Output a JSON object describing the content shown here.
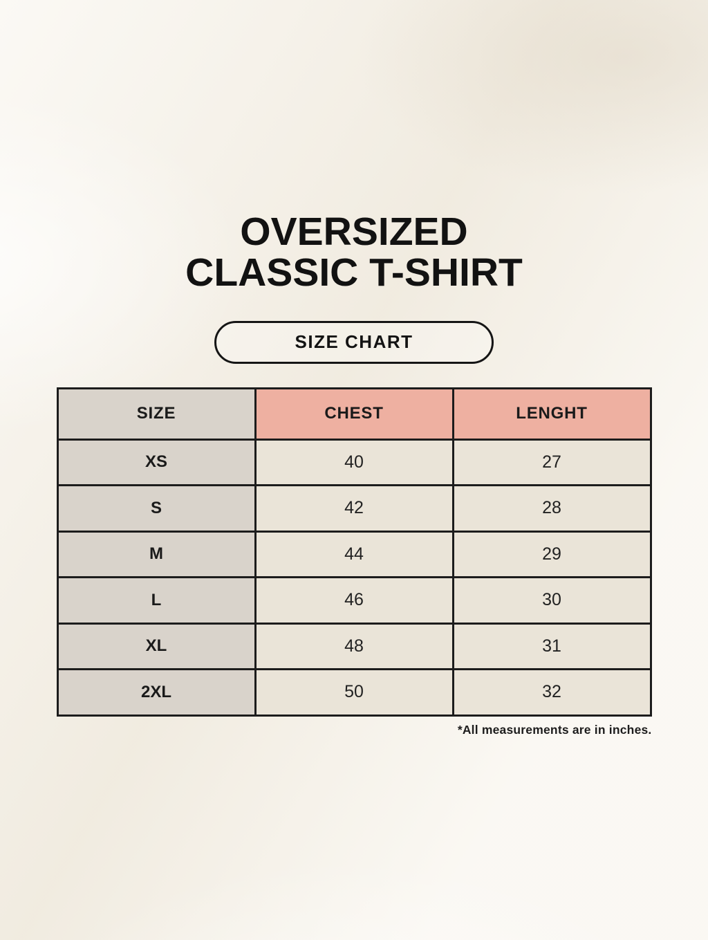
{
  "colors": {
    "page_bg": "#f7f3ea",
    "text": "#161616",
    "table_border": "#1c1c1c",
    "header_size_bg": "#d9d3cb",
    "header_measure_bg": "#eeb0a1",
    "row_label_bg": "#d9d3cb",
    "row_value_bg": "#eae4d8"
  },
  "header": {
    "title_line1": "OVERSIZED",
    "title_line2": "CLASSIC T-SHIRT",
    "badge_label": "SIZE CHART"
  },
  "table": {
    "columns": [
      "SIZE",
      "CHEST",
      "LENGHT"
    ],
    "rows": [
      {
        "size": "XS",
        "chest": "40",
        "length": "27"
      },
      {
        "size": "S",
        "chest": "42",
        "length": "28"
      },
      {
        "size": "M",
        "chest": "44",
        "length": "29"
      },
      {
        "size": "L",
        "chest": "46",
        "length": "30"
      },
      {
        "size": "XL",
        "chest": "48",
        "length": "31"
      },
      {
        "size": "2XL",
        "chest": "50",
        "length": "32"
      }
    ],
    "units_note": "*All measurements are in inches."
  }
}
